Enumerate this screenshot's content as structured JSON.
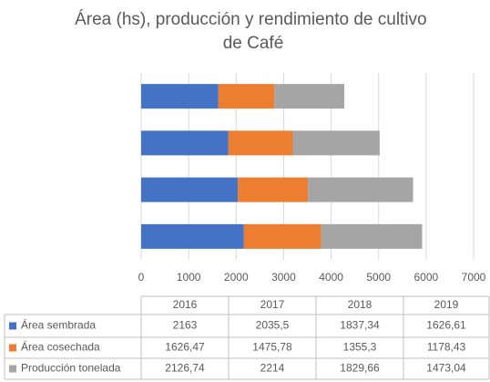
{
  "chart_data": {
    "type": "bar",
    "orientation": "horizontal",
    "stacked": true,
    "title": "Área (hs), producción y rendimiento de cultivo de Café",
    "categories": [
      "2016",
      "2017",
      "2018",
      "2019"
    ],
    "series": [
      {
        "name": "Área sembrada",
        "color": "#4472c4",
        "values": [
          2163,
          2035.5,
          1837.34,
          1626.61
        ],
        "value_labels": [
          "2163",
          "2035,5",
          "1837,34",
          "1626,61"
        ]
      },
      {
        "name": "Área cosechada",
        "color": "#ed7d31",
        "values": [
          1626.47,
          1475.78,
          1355.3,
          1178.43
        ],
        "value_labels": [
          "1626,47",
          "1475,78",
          "1355,3",
          "1178,43"
        ]
      },
      {
        "name": "Producción tonelada",
        "color": "#a5a5a5",
        "values": [
          2126.74,
          2214,
          1829.66,
          1473.04
        ],
        "value_labels": [
          "2126,74",
          "2214",
          "1829,66",
          "1473,04"
        ]
      }
    ],
    "xlim": [
      0,
      7000
    ],
    "xticks": [
      0,
      1000,
      2000,
      3000,
      4000,
      5000,
      6000,
      7000
    ],
    "grid": true,
    "data_table": true
  }
}
